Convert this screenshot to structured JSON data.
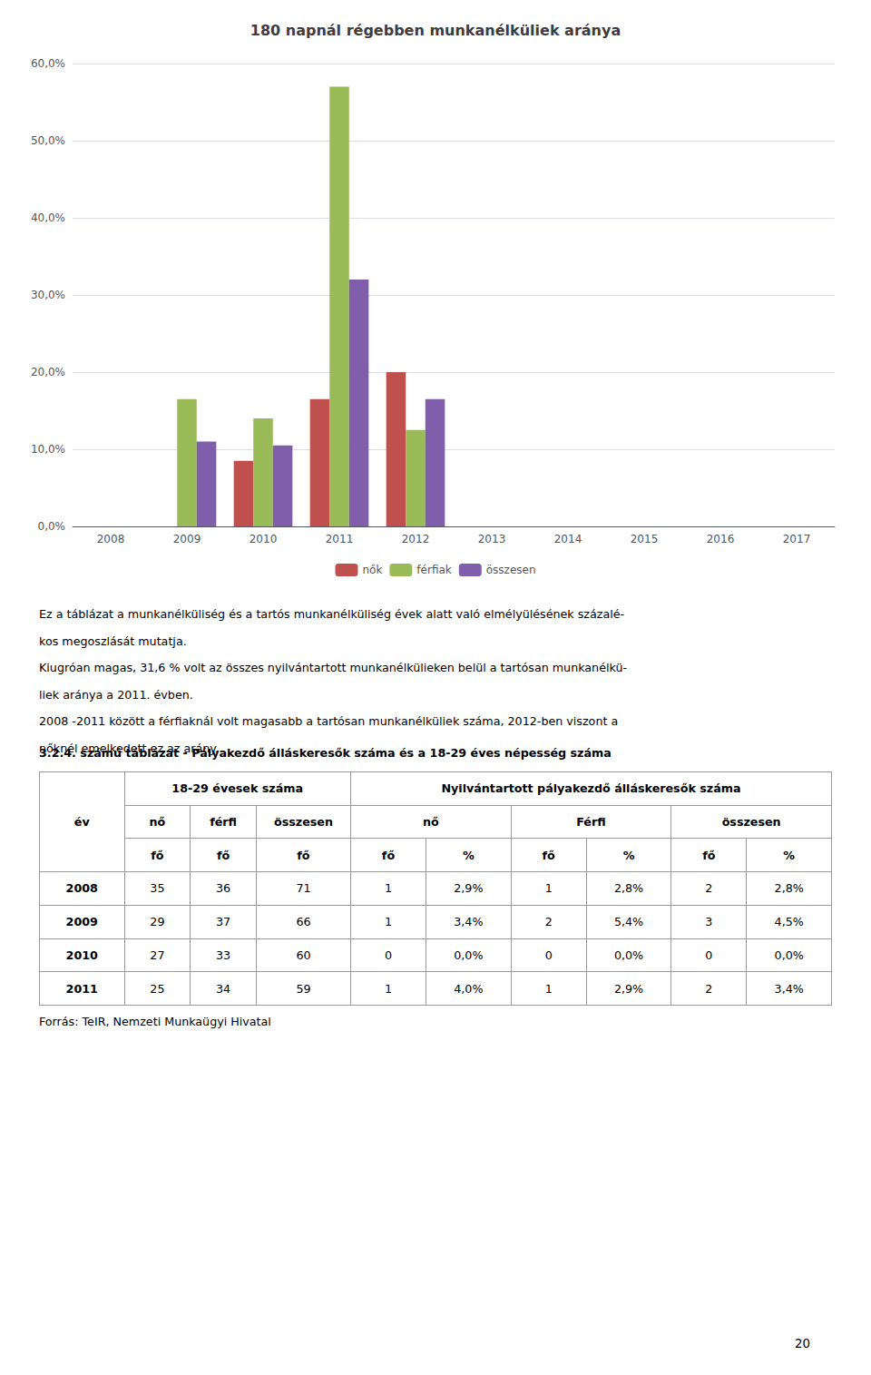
{
  "chart_data": {
    "type": "bar",
    "title": "180 napnál régebben munkanélküliek aránya",
    "categories": [
      "2008",
      "2009",
      "2010",
      "2011",
      "2012",
      "2013",
      "2014",
      "2015",
      "2016",
      "2017"
    ],
    "series": [
      {
        "name": "nők",
        "color": "#C0504D",
        "values": [
          0.0,
          0.0,
          8.5,
          16.5,
          20.0,
          0.0,
          0.0,
          0.0,
          0.0,
          0.0
        ]
      },
      {
        "name": "férfiak",
        "color": "#9BBB59",
        "values": [
          0.0,
          16.5,
          14.0,
          57.0,
          12.5,
          0.0,
          0.0,
          0.0,
          0.0,
          0.0
        ]
      },
      {
        "name": "összesen",
        "color": "#7F5FAC",
        "values": [
          0.0,
          11.0,
          10.5,
          32.0,
          16.5,
          0.0,
          0.0,
          0.0,
          0.0,
          0.0
        ]
      }
    ],
    "ylim": [
      0,
      60
    ],
    "yticks": [
      {
        "value": 0,
        "label": "0,0%"
      },
      {
        "value": 10,
        "label": "10,0%"
      },
      {
        "value": 20,
        "label": "20,0%"
      },
      {
        "value": 30,
        "label": "30,0%"
      },
      {
        "value": 40,
        "label": "40,0%"
      },
      {
        "value": 50,
        "label": "50,0%"
      },
      {
        "value": 60,
        "label": "60,0%"
      }
    ],
    "grid": true,
    "legend": "bottom"
  },
  "text_lines": [
    "Ez a táblázat a munkanélküliség és a tartós munkanélküliség évek alatt való elmélyülésének százalé-",
    "kos megoszlását mutatja.",
    "Kiugróan magas, 31,6 % volt az összes nyilvántartott munkanélkülieken belül a tartósan munkanélkü-",
    "liek aránya a 2011. évben.",
    "2008 -2011 között a férfiaknál volt magasabb a tartósan munkanélküliek száma, 2012-ben viszont a",
    "nőknél emelkedett ez az arány."
  ],
  "table": {
    "title": "3.2.4. számú táblázat - Pályakezdő álláskeresők száma és a 18-29 éves népesség száma",
    "header_rows": [
      [
        "év",
        "18-29 évesek száma",
        "Nyilvántartott pályakezdő álláskeresők száma"
      ],
      [
        "nő",
        "férfi",
        "összesen",
        "nő",
        "Férfi",
        "összesen"
      ],
      [
        "fő",
        "fő",
        "fő",
        "fő",
        "%",
        "fő",
        "%",
        "fő",
        "%"
      ]
    ],
    "rows": [
      [
        "2008",
        "35",
        "36",
        "71",
        "1",
        "2,9%",
        "1",
        "2,8%",
        "2",
        "2,8%"
      ],
      [
        "2009",
        "29",
        "37",
        "66",
        "1",
        "3,4%",
        "2",
        "5,4%",
        "3",
        "4,5%"
      ],
      [
        "2010",
        "27",
        "33",
        "60",
        "0",
        "0,0%",
        "0",
        "0,0%",
        "0",
        "0,0%"
      ],
      [
        "2011",
        "25",
        "34",
        "59",
        "1",
        "4,0%",
        "1",
        "2,9%",
        "2",
        "3,4%"
      ]
    ]
  },
  "footer": "Forrás: TeIR, Nemzeti Munkaügyi Hivatal",
  "page_number": "20"
}
